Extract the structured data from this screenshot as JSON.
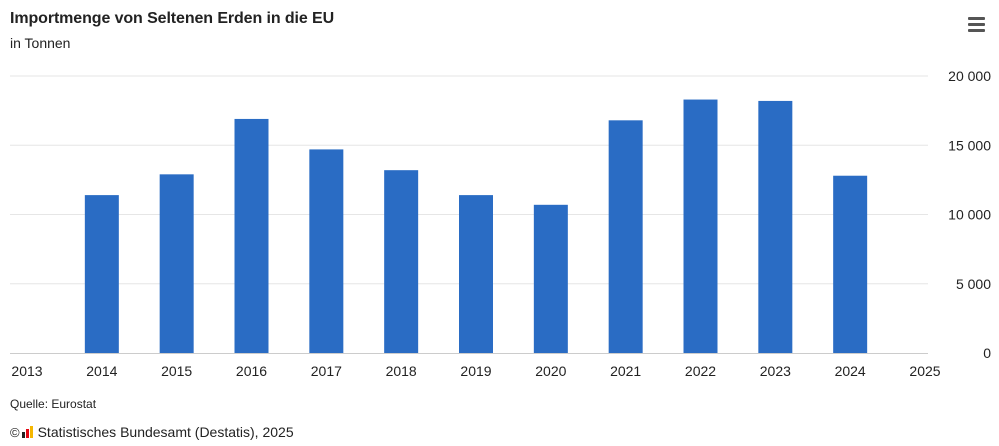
{
  "header": {
    "title": "Importmenge von Seltenen Erden in die EU",
    "subtitle": "in Tonnen",
    "menu_icon": "hamburger-menu-icon"
  },
  "footer": {
    "source": "Quelle: Eurostat",
    "copyright_symbol": "©",
    "logo_icon": "destatis-logo-icon",
    "credits": "Statistisches Bundesamt (Destatis), 2025"
  },
  "colors": {
    "bar": "#2a6cc4",
    "grid": "#e6e6e6",
    "axis": "#cccccc",
    "text": "#222222"
  },
  "chart_data": {
    "type": "bar",
    "title": "Importmenge von Seltenen Erden in die EU",
    "subtitle": "in Tonnen",
    "x_ticks": [
      "2013",
      "2014",
      "2015",
      "2016",
      "2017",
      "2018",
      "2019",
      "2020",
      "2021",
      "2022",
      "2023",
      "2024",
      "2025"
    ],
    "categories": [
      "2014",
      "2015",
      "2016",
      "2017",
      "2018",
      "2019",
      "2020",
      "2021",
      "2022",
      "2023",
      "2024"
    ],
    "values": [
      11400,
      12900,
      16900,
      14700,
      13200,
      11400,
      10700,
      16800,
      18300,
      18200,
      12800
    ],
    "y_ticks": [
      0,
      5000,
      10000,
      15000,
      20000
    ],
    "y_tick_labels": [
      "0",
      "5 000",
      "10 000",
      "15 000",
      "20 000"
    ],
    "ylim": [
      0,
      20000
    ],
    "y_axis_position": "right",
    "grid": true,
    "legend": "none"
  }
}
